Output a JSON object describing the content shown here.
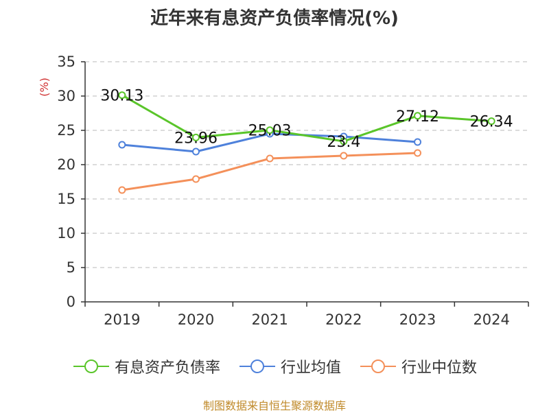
{
  "chart_data": {
    "type": "line",
    "title": "近年来有息资产负债率情况(%)",
    "ylabel": "(%)",
    "categories": [
      "2019",
      "2020",
      "2021",
      "2022",
      "2023",
      "2024"
    ],
    "ylim": [
      0,
      35
    ],
    "yticks": [
      0,
      5,
      10,
      15,
      20,
      25,
      30,
      35
    ],
    "grid": true,
    "legend_position": "bottom",
    "series": [
      {
        "name": "有息资产负债率",
        "color": "#5ac52a",
        "values": [
          30.13,
          23.96,
          25.03,
          23.4,
          27.12,
          26.34
        ],
        "labels": [
          "30.13",
          "23.96",
          "25.03",
          "23.4",
          "27.12",
          "26.34"
        ]
      },
      {
        "name": "行业均值",
        "color": "#4e81db",
        "values": [
          22.9,
          21.9,
          24.5,
          24.1,
          23.3,
          null
        ]
      },
      {
        "name": "行业中位数",
        "color": "#f4905a",
        "values": [
          16.3,
          17.9,
          20.9,
          21.3,
          21.7,
          null
        ]
      }
    ]
  },
  "footer": {
    "source": "制图数据来自恒生聚源数据库"
  }
}
